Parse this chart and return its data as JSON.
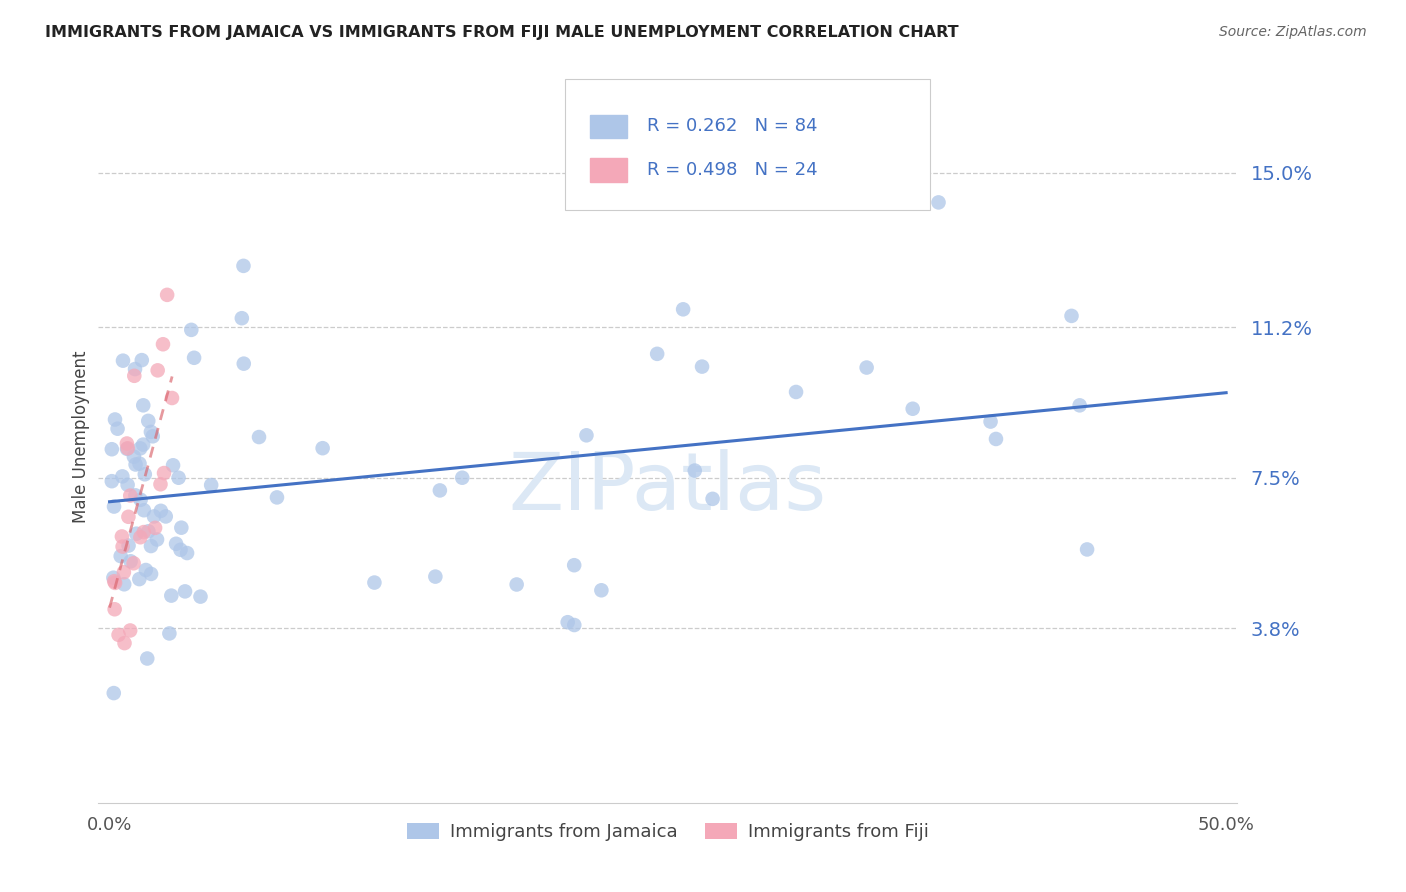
{
  "title": "IMMIGRANTS FROM JAMAICA VS IMMIGRANTS FROM FIJI MALE UNEMPLOYMENT CORRELATION CHART",
  "source": "Source: ZipAtlas.com",
  "ylabel": "Male Unemployment",
  "xlim": [
    -0.005,
    0.505
  ],
  "ylim": [
    -0.005,
    0.175
  ],
  "ytick_labels": [
    "15.0%",
    "11.2%",
    "7.5%",
    "3.8%"
  ],
  "ytick_values": [
    0.15,
    0.112,
    0.075,
    0.038
  ],
  "xtick_labels": [
    "0.0%",
    "50.0%"
  ],
  "xtick_values": [
    0.0,
    0.5
  ],
  "legend1_R": "0.262",
  "legend1_N": "84",
  "legend2_R": "0.498",
  "legend2_N": "24",
  "color_jamaica": "#aec6e8",
  "color_fiji": "#f4a8b8",
  "color_line_jamaica": "#4472c4",
  "color_line_fiji": "#d9636b",
  "color_tick_labels_right": "#4472c4",
  "color_tick_labels_bottom": "#555555",
  "background_color": "#ffffff",
  "watermark_text": "ZIPatlas",
  "watermark_color": "#dce8f5",
  "grid_color": "#cccccc"
}
